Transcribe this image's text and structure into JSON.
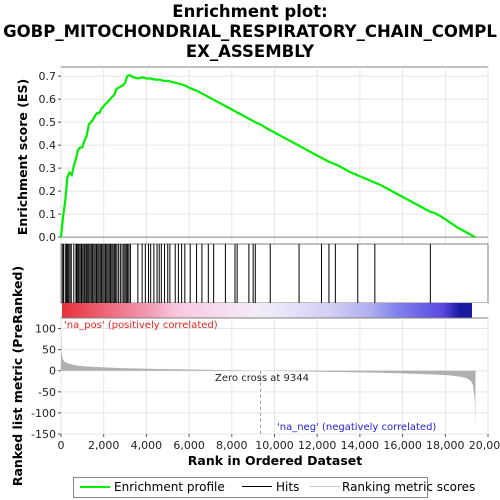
{
  "title": {
    "line1": "Enrichment plot:",
    "line2": "GOBP_MITOCHONDRIAL_RESPIRATORY_CHAIN_COMPL",
    "line3": "EX_ASSEMBLY"
  },
  "colors": {
    "es_line": "#00ee00",
    "hits": "#000000",
    "metric_fill": "#b0b0b0",
    "pos_label": "#ee2222",
    "neg_label": "#2222dd",
    "grid": "#e6e6e6"
  },
  "chart_data": {
    "type": "line",
    "es_panel": {
      "ylabel": "Enrichment score (ES)",
      "ylim": [
        -0.03,
        0.74
      ],
      "yticks": [
        0.0,
        0.1,
        0.2,
        0.3,
        0.4,
        0.5,
        0.6,
        0.7
      ],
      "ytick_labels": [
        "0.0",
        "0.1",
        "0.2",
        "0.3",
        "0.4",
        "0.5",
        "0.6",
        "0.7"
      ],
      "x": [
        0,
        100,
        200,
        300,
        400,
        500,
        600,
        700,
        800,
        900,
        1000,
        1100,
        1200,
        1300,
        1400,
        1500,
        1600,
        1700,
        1800,
        1900,
        2000,
        2100,
        2200,
        2300,
        2400,
        2500,
        2600,
        2700,
        2800,
        2900,
        3000,
        3100,
        3200,
        3400,
        3600,
        3800,
        4000,
        4200,
        4400,
        4600,
        4800,
        5000,
        5200,
        5400,
        5600,
        5800,
        6000,
        6400,
        6800,
        7200,
        7600,
        8000,
        8400,
        8800,
        9200,
        9344,
        9600,
        10000,
        10500,
        11000,
        11500,
        12000,
        12500,
        13000,
        13500,
        14000,
        14500,
        15000,
        15500,
        16000,
        16500,
        17000,
        17300,
        17500,
        17800,
        18200,
        18600,
        19000,
        19400
      ],
      "es": [
        0.0,
        0.09,
        0.16,
        0.26,
        0.28,
        0.27,
        0.31,
        0.34,
        0.38,
        0.39,
        0.39,
        0.42,
        0.44,
        0.49,
        0.5,
        0.51,
        0.53,
        0.54,
        0.54,
        0.56,
        0.57,
        0.58,
        0.59,
        0.6,
        0.61,
        0.62,
        0.645,
        0.65,
        0.655,
        0.66,
        0.67,
        0.7,
        0.705,
        0.695,
        0.69,
        0.695,
        0.69,
        0.69,
        0.685,
        0.685,
        0.68,
        0.68,
        0.675,
        0.67,
        0.665,
        0.66,
        0.65,
        0.635,
        0.615,
        0.595,
        0.575,
        0.555,
        0.535,
        0.515,
        0.495,
        0.49,
        0.475,
        0.455,
        0.43,
        0.405,
        0.38,
        0.355,
        0.33,
        0.31,
        0.285,
        0.265,
        0.245,
        0.225,
        0.2,
        0.175,
        0.15,
        0.125,
        0.11,
        0.105,
        0.09,
        0.065,
        0.04,
        0.02,
        0.0
      ]
    },
    "hits_x": [
      60,
      120,
      200,
      260,
      310,
      360,
      420,
      480,
      600,
      700,
      740,
      790,
      840,
      900,
      960,
      1020,
      1080,
      1130,
      1190,
      1250,
      1300,
      1360,
      1420,
      1480,
      1540,
      1600,
      1660,
      1720,
      1780,
      1840,
      1900,
      1960,
      2020,
      2080,
      2140,
      2200,
      2260,
      2320,
      2380,
      2440,
      2500,
      2560,
      2620,
      2700,
      2780,
      2860,
      2940,
      3000,
      3060,
      3120,
      3180,
      3250,
      3600,
      3800,
      3950,
      4100,
      4200,
      4350,
      4500,
      4600,
      4700,
      4850,
      5000,
      5100,
      5350,
      5500,
      5650,
      5800,
      6050,
      6350,
      6600,
      6900,
      7150,
      7700,
      8150,
      8250,
      8800,
      9000,
      9100,
      9800,
      11150,
      12200,
      12550,
      12850,
      13900,
      14700,
      17300
    ],
    "metric_panel": {
      "ylabel": "Ranked list metric (PreRanked)",
      "ylim": [
        -150,
        125
      ],
      "yticks": [
        100,
        50,
        0,
        -50,
        -100,
        -150
      ],
      "ytick_labels": [
        "100",
        "50",
        "0",
        "-50",
        "-100",
        "-150"
      ],
      "x": [
        0,
        30,
        80,
        150,
        300,
        500,
        800,
        1200,
        2000,
        3000,
        4000,
        6000,
        8000,
        9344,
        11000,
        13000,
        15000,
        16500,
        17500,
        18200,
        18700,
        19000,
        19200,
        19300,
        19380,
        19400,
        19420
      ],
      "y": [
        112,
        42,
        28,
        22,
        18,
        15,
        12,
        10,
        8,
        6,
        4.5,
        3,
        1.5,
        0,
        -1.5,
        -3,
        -5,
        -7,
        -9,
        -11,
        -14,
        -18,
        -24,
        -35,
        -70,
        -140,
        0
      ],
      "pos_label": "'na_pos' (positively correlated)",
      "neg_label": "'na_neg' (negatively correlated)",
      "zero_cross_label": "Zero cross at 9344",
      "zero_cross_x": 9344
    },
    "xaxis": {
      "xlabel": "Rank in Ordered Dataset",
      "xlim": [
        0,
        20000
      ],
      "xticks": [
        0,
        2000,
        4000,
        6000,
        8000,
        10000,
        12000,
        14000,
        16000,
        18000,
        20000
      ],
      "xtick_labels": [
        "0",
        "2,000",
        "4,000",
        "6,000",
        "8,000",
        "10,000",
        "12,000",
        "14,000",
        "16,000",
        "18,000",
        "20,000"
      ],
      "n_genes": 19420
    },
    "legend": {
      "items": [
        "Enrichment profile",
        "Hits",
        "Ranking metric scores"
      ],
      "placement": "bottom"
    },
    "grid": true
  }
}
